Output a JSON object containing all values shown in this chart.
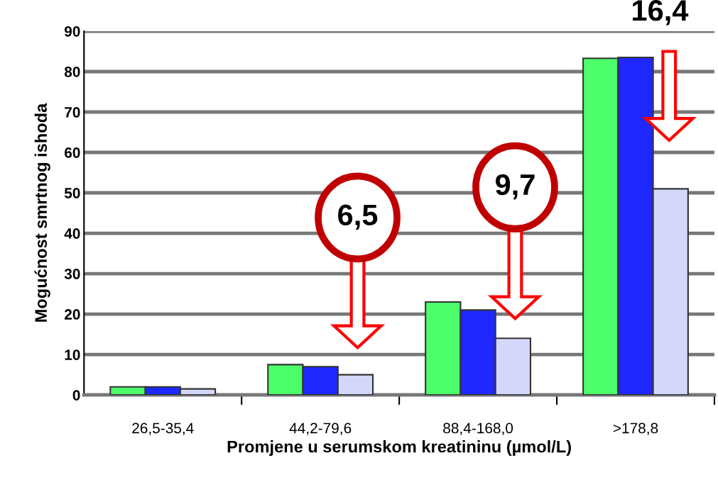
{
  "chart_data": {
    "type": "bar",
    "categories": [
      "26,5-35,4",
      "44,2-79,6",
      "88,4-168,0",
      ">178,8"
    ],
    "series": [
      {
        "color": "#4cff6a",
        "values": [
          2,
          7.5,
          23,
          83.3
        ]
      },
      {
        "color": "#1e28ff",
        "values": [
          2,
          7,
          21,
          83.5
        ]
      },
      {
        "color": "#d4d6fa",
        "values": [
          1.5,
          5,
          14,
          51
        ]
      }
    ],
    "xlabel": "Promjene u serumskom kreatininu (µmol/L)",
    "ylabel": "Mogućnost smrtnog ishoda",
    "ylim": [
      0,
      90
    ],
    "yticks": [
      0,
      10,
      20,
      30,
      40,
      50,
      60,
      70,
      80,
      90
    ],
    "grid": "y",
    "legend": false,
    "annotations": [
      "6,5",
      "9,7",
      "16,4"
    ]
  }
}
